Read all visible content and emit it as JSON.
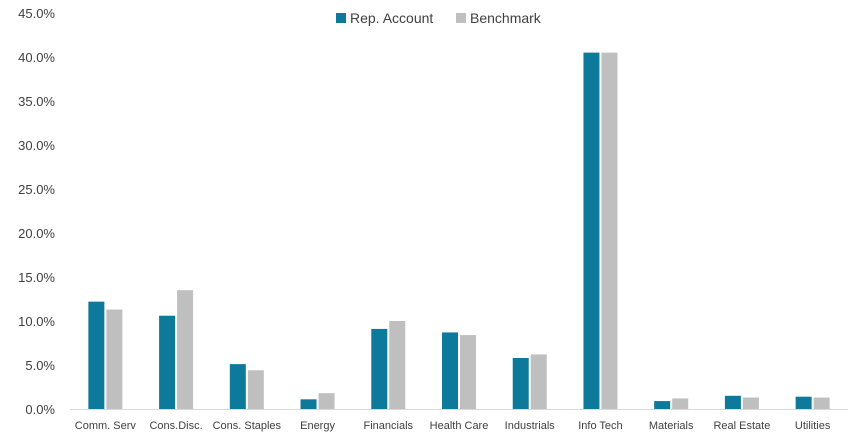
{
  "chart_data": {
    "type": "bar",
    "categories": [
      "Comm. Serv",
      "Cons.Disc.",
      "Cons. Staples",
      "Energy",
      "Financials",
      "Health Care",
      "Industrials",
      "Info Tech",
      "Materials",
      "Real Estate",
      "Utilities"
    ],
    "series": [
      {
        "name": "Rep. Account",
        "color": "#0e7a9b",
        "values": [
          12.2,
          10.6,
          5.1,
          1.1,
          9.1,
          8.7,
          5.8,
          40.5,
          0.9,
          1.5,
          1.4
        ]
      },
      {
        "name": "Benchmark",
        "color": "#bfbfbf",
        "values": [
          11.3,
          13.5,
          4.4,
          1.8,
          10.0,
          8.4,
          6.2,
          40.5,
          1.2,
          1.3,
          1.3
        ]
      }
    ],
    "ylim": [
      0,
      45
    ],
    "yticks": [
      "0.0%",
      "5.0%",
      "10.0%",
      "15.0%",
      "20.0%",
      "25.0%",
      "30.0%",
      "35.0%",
      "40.0%",
      "45.0%"
    ],
    "grid": false,
    "legend": "top-center"
  }
}
